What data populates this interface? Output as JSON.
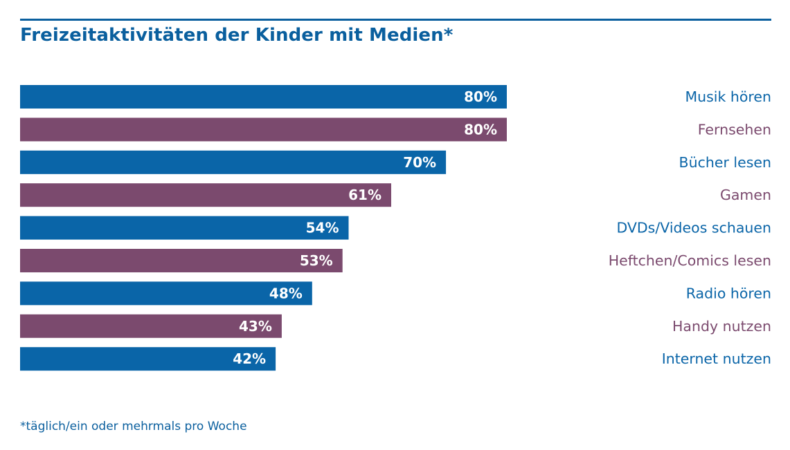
{
  "chart_data": {
    "type": "bar",
    "orientation": "horizontal",
    "title": "Freizeitaktivitäten der Kinder mit Medien*",
    "footnote": "*täglich/ein oder mehrmals pro Woche",
    "categories": [
      "Musik hören",
      "Fernsehen",
      "Bücher lesen",
      "Gamen",
      "DVDs/Videos schauen",
      "Heftchen/Comics lesen",
      "Radio hören",
      "Handy nutzen",
      "Internet nutzen"
    ],
    "values": [
      80,
      80,
      70,
      61,
      54,
      53,
      48,
      43,
      42
    ],
    "value_labels": [
      "80%",
      "80%",
      "70%",
      "61%",
      "54%",
      "53%",
      "48%",
      "43%",
      "42%"
    ],
    "xlim": [
      0,
      100
    ],
    "unit": "%",
    "colors": [
      "#0a65a8",
      "#7b4a6e"
    ],
    "label_colors": [
      "#0a65a8",
      "#7b4a6e"
    ],
    "legend": "none",
    "grid": false
  },
  "accent_color": "#0a5f9e"
}
